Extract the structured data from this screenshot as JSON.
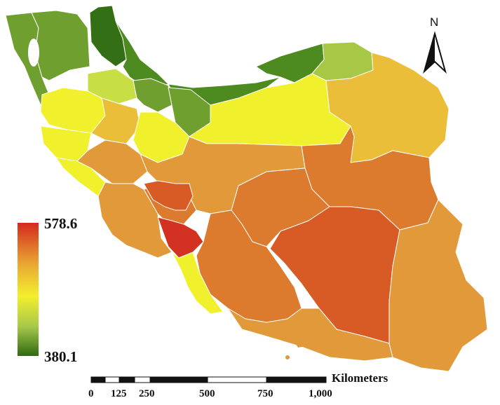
{
  "legend": {
    "max_label": "578.6",
    "min_label": "380.1",
    "color_stops": [
      "#d42a1e",
      "#e8a432",
      "#f3ef2d",
      "#a6c84a",
      "#2f6a12"
    ]
  },
  "north_arrow": {
    "label": "N"
  },
  "scale_bar": {
    "unit_label": "Kilometers",
    "ticks": [
      "0",
      "125",
      "250",
      "500",
      "750",
      "1,000"
    ]
  },
  "colors": {
    "dark_green": "#336f14",
    "green": "#4d8a1f",
    "mid_green": "#6f9f2f",
    "light_green": "#a7c746",
    "yellow_green": "#c9dd45",
    "yellow": "#f1f02c",
    "light_orange": "#eabe38",
    "orange": "#e2993a",
    "dark_orange": "#dc7a2d",
    "red_orange": "#d85a24",
    "red": "#d33222"
  }
}
